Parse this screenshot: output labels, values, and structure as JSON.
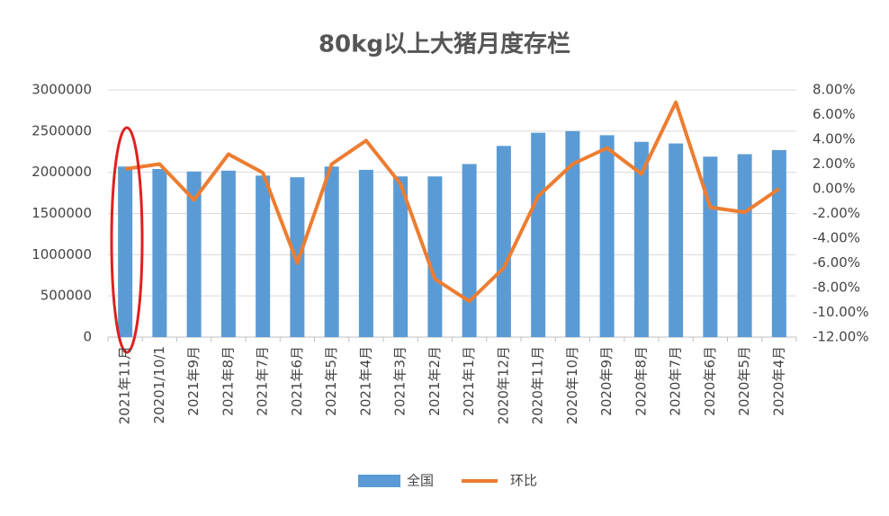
{
  "chart_data": {
    "type": "bar-line",
    "title": "80kg以上大猪月度存栏",
    "categories": [
      "2021年11月",
      "20201/10/1",
      "2021年9月",
      "2021年8月",
      "2021年7月",
      "2021年6月",
      "2021年5月",
      "2021年4月",
      "2021年3月",
      "2021年2月",
      "2021年1月",
      "2020年12月",
      "2020年11月",
      "2020年10月",
      "2020年9月",
      "2020年8月",
      "2020年7月",
      "2020年6月",
      "2020年5月",
      "2020年4月"
    ],
    "series": [
      {
        "name": "全国",
        "type": "bar",
        "color": "#5b9bd5",
        "values": [
          2070000,
          2040000,
          2010000,
          2020000,
          1960000,
          1940000,
          2070000,
          2030000,
          1950000,
          1950000,
          2100000,
          2320000,
          2480000,
          2500000,
          2450000,
          2370000,
          2350000,
          2190000,
          2220000,
          2270000
        ]
      },
      {
        "name": "环比",
        "type": "line",
        "axis": "y2",
        "color": "#ed7d31",
        "values": [
          1.6,
          2.0,
          -0.9,
          2.8,
          1.3,
          -6.0,
          2.0,
          3.9,
          0.4,
          -7.3,
          -9.1,
          -6.4,
          -0.6,
          2.0,
          3.3,
          1.2,
          7.0,
          -1.5,
          -1.9,
          0.0
        ]
      }
    ],
    "ylim": [
      0,
      3000000
    ],
    "yticks": [
      0,
      500000,
      1000000,
      1500000,
      2000000,
      2500000,
      3000000
    ],
    "y2lim": [
      -12,
      8
    ],
    "y2ticks": [
      {
        "value": -12,
        "label": "-12.00%"
      },
      {
        "value": -10,
        "label": "-10.00%"
      },
      {
        "value": -8,
        "label": "-8.00%"
      },
      {
        "value": -6,
        "label": "-6.00%"
      },
      {
        "value": -4,
        "label": "-4.00%"
      },
      {
        "value": -2,
        "label": "-2.00%"
      },
      {
        "value": 0,
        "label": "0.00%"
      },
      {
        "value": 2,
        "label": "2.00%"
      },
      {
        "value": 4,
        "label": "4.00%"
      },
      {
        "value": 6,
        "label": "6.00%"
      },
      {
        "value": 8,
        "label": "8.00%"
      }
    ],
    "grid": true,
    "legend": "bottom"
  }
}
